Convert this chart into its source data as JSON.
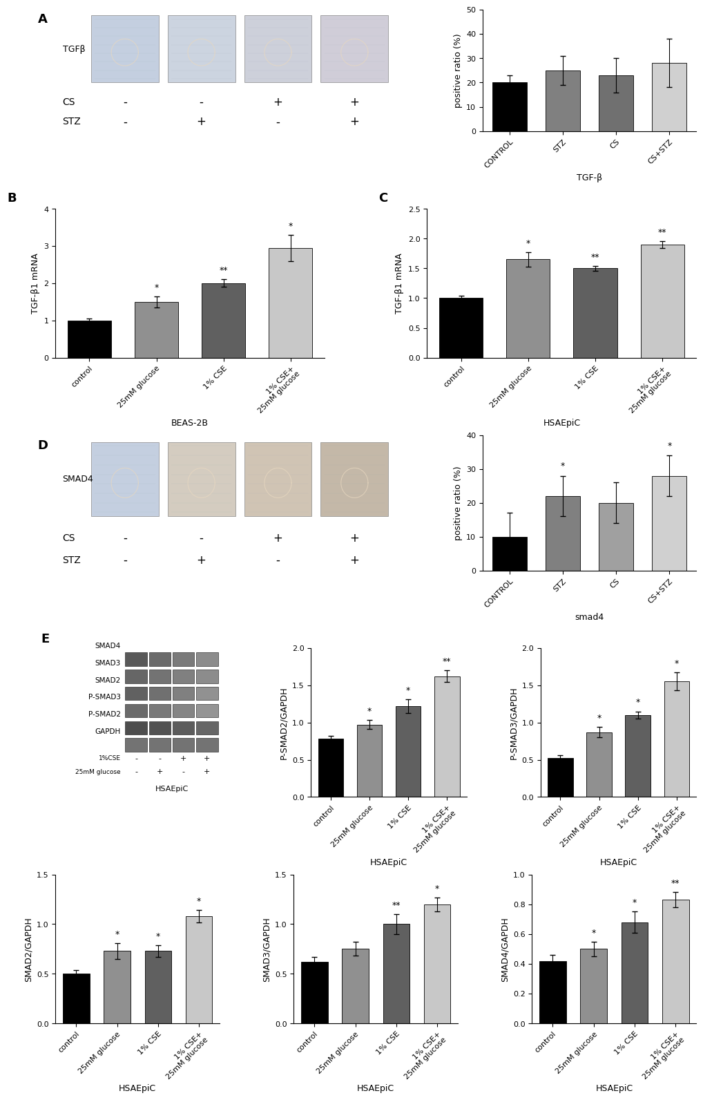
{
  "panel_A": {
    "bar_values": [
      20,
      25,
      23,
      28
    ],
    "bar_errors": [
      3,
      6,
      7,
      10
    ],
    "bar_colors": [
      "#000000",
      "#808080",
      "#707070",
      "#d0d0d0"
    ],
    "categories": [
      "CONTROL",
      "STZ",
      "CS",
      "CS+STZ"
    ],
    "ylabel": "positive ratio (%)",
    "ylim": [
      0,
      50
    ],
    "yticks": [
      0,
      10,
      20,
      30,
      40,
      50
    ],
    "xlabel": "TGF-β",
    "cs_labels": [
      "-",
      "-",
      "+",
      "+"
    ],
    "stz_labels": [
      "-",
      "+",
      "-",
      "+"
    ]
  },
  "panel_B": {
    "bar_values": [
      1.0,
      1.5,
      2.0,
      2.95
    ],
    "bar_errors": [
      0.05,
      0.15,
      0.1,
      0.35
    ],
    "bar_colors": [
      "#000000",
      "#909090",
      "#606060",
      "#c8c8c8"
    ],
    "categories": [
      "control",
      "25mM glucose",
      "1% CSE",
      "1% CSE+\n25mM glucose"
    ],
    "ylabel": "TGF-β1 mRNA",
    "ylim": [
      0,
      4
    ],
    "yticks": [
      0,
      1,
      2,
      3,
      4
    ],
    "title": "BEAS-2B",
    "sig_labels": [
      "",
      "*",
      "**",
      "*"
    ]
  },
  "panel_C": {
    "bar_values": [
      1.0,
      1.65,
      1.5,
      1.9
    ],
    "bar_errors": [
      0.04,
      0.12,
      0.04,
      0.06
    ],
    "bar_colors": [
      "#000000",
      "#909090",
      "#606060",
      "#c8c8c8"
    ],
    "categories": [
      "control",
      "25mM glucose",
      "1% CSE",
      "1% CSE+\n25mM glucose"
    ],
    "ylabel": "TGF-β1 mRNA",
    "ylim": [
      0.0,
      2.5
    ],
    "yticks": [
      0.0,
      0.5,
      1.0,
      1.5,
      2.0,
      2.5
    ],
    "title": "HSAEpiC",
    "sig_labels": [
      "",
      "*",
      "**",
      "**"
    ]
  },
  "panel_D": {
    "bar_values": [
      10,
      22,
      20,
      28
    ],
    "bar_errors": [
      7,
      6,
      6,
      6
    ],
    "bar_colors": [
      "#000000",
      "#808080",
      "#a0a0a0",
      "#d0d0d0"
    ],
    "categories": [
      "CONTROL",
      "STZ",
      "CS",
      "CS+STZ"
    ],
    "ylabel": "positive ratio (%)",
    "ylim": [
      0,
      40
    ],
    "yticks": [
      0,
      10,
      20,
      30,
      40
    ],
    "xlabel": "smad4",
    "sig_labels": [
      "",
      "*",
      "",
      "*"
    ],
    "cs_labels": [
      "-",
      "-",
      "+",
      "+"
    ],
    "stz_labels": [
      "-",
      "+",
      "-",
      "+"
    ]
  },
  "panel_E1": {
    "bar_values": [
      0.78,
      0.97,
      1.22,
      1.62
    ],
    "bar_errors": [
      0.04,
      0.06,
      0.09,
      0.08
    ],
    "bar_colors": [
      "#000000",
      "#909090",
      "#606060",
      "#c8c8c8"
    ],
    "categories": [
      "control",
      "25mM glucose",
      "1% CSE",
      "1% CSE+\n25mM glucose"
    ],
    "ylabel": "P-SMAD2/GAPDH",
    "ylim": [
      0,
      2.0
    ],
    "yticks": [
      0,
      0.5,
      1.0,
      1.5,
      2.0
    ],
    "title": "HSAEpiC",
    "sig_labels": [
      "",
      "*",
      "*",
      "**"
    ]
  },
  "panel_E2": {
    "bar_values": [
      0.52,
      0.87,
      1.1,
      1.55
    ],
    "bar_errors": [
      0.04,
      0.07,
      0.05,
      0.12
    ],
    "bar_colors": [
      "#000000",
      "#909090",
      "#606060",
      "#c8c8c8"
    ],
    "categories": [
      "control",
      "25mM glucose",
      "1% CSE",
      "1% CSE+\n25mM glucose"
    ],
    "ylabel": "P-SMAD3/GAPDH",
    "ylim": [
      0,
      2.0
    ],
    "yticks": [
      0,
      0.5,
      1.0,
      1.5,
      2.0
    ],
    "title": "HSAEpiC",
    "sig_labels": [
      "",
      "*",
      "*",
      "*"
    ]
  },
  "panel_E3": {
    "bar_values": [
      0.5,
      0.73,
      0.73,
      1.08
    ],
    "bar_errors": [
      0.04,
      0.08,
      0.06,
      0.06
    ],
    "bar_colors": [
      "#000000",
      "#909090",
      "#606060",
      "#c8c8c8"
    ],
    "categories": [
      "control",
      "25mM glucose",
      "1% CSE",
      "1% CSE+\n25mM glucose"
    ],
    "ylabel": "SMAD2/GAPDH",
    "ylim": [
      0,
      1.5
    ],
    "yticks": [
      0,
      0.5,
      1.0,
      1.5
    ],
    "title": "HSAEpiC",
    "sig_labels": [
      "",
      "*",
      "*",
      "*"
    ]
  },
  "panel_E4": {
    "bar_values": [
      0.62,
      0.75,
      1.0,
      1.2
    ],
    "bar_errors": [
      0.05,
      0.07,
      0.1,
      0.07
    ],
    "bar_colors": [
      "#000000",
      "#909090",
      "#606060",
      "#c8c8c8"
    ],
    "categories": [
      "control",
      "25mM glucose",
      "1% CSE",
      "1% CSE+\n25mM glucose"
    ],
    "ylabel": "SMAD3/GAPDH",
    "ylim": [
      0,
      1.5
    ],
    "yticks": [
      0,
      0.5,
      1.0,
      1.5
    ],
    "title": "HSAEpiC",
    "sig_labels": [
      "",
      "",
      "**",
      "*"
    ]
  },
  "panel_E5": {
    "bar_values": [
      0.42,
      0.5,
      0.68,
      0.83
    ],
    "bar_errors": [
      0.04,
      0.05,
      0.07,
      0.05
    ],
    "bar_colors": [
      "#000000",
      "#909090",
      "#606060",
      "#c8c8c8"
    ],
    "categories": [
      "control",
      "25mM glucose",
      "1% CSE",
      "1% CSE+\n25mM glucose"
    ],
    "ylabel": "SMAD4/GAPDH",
    "ylim": [
      0,
      1.0
    ],
    "yticks": [
      0,
      0.2,
      0.4,
      0.6,
      0.8,
      1.0
    ],
    "title": "HSAEpiC",
    "sig_labels": [
      "",
      "*",
      "*",
      "**"
    ]
  },
  "western_blot_labels": [
    "SMAD4",
    "SMAD3",
    "SMAD2",
    "P-SMAD3",
    "P-SMAD2",
    "GAPDH"
  ],
  "western_cse_row": [
    "1%CSE",
    "-",
    "-",
    "+",
    "+"
  ],
  "western_glucose_row": [
    "25mM glucose",
    "-",
    "+",
    "-",
    "+"
  ],
  "western_cell_label": "HSAEpiC",
  "background_color": "#ffffff",
  "label_fontsize": 9,
  "tick_fontsize": 8,
  "title_fontsize": 9,
  "panel_label_fontsize": 13
}
